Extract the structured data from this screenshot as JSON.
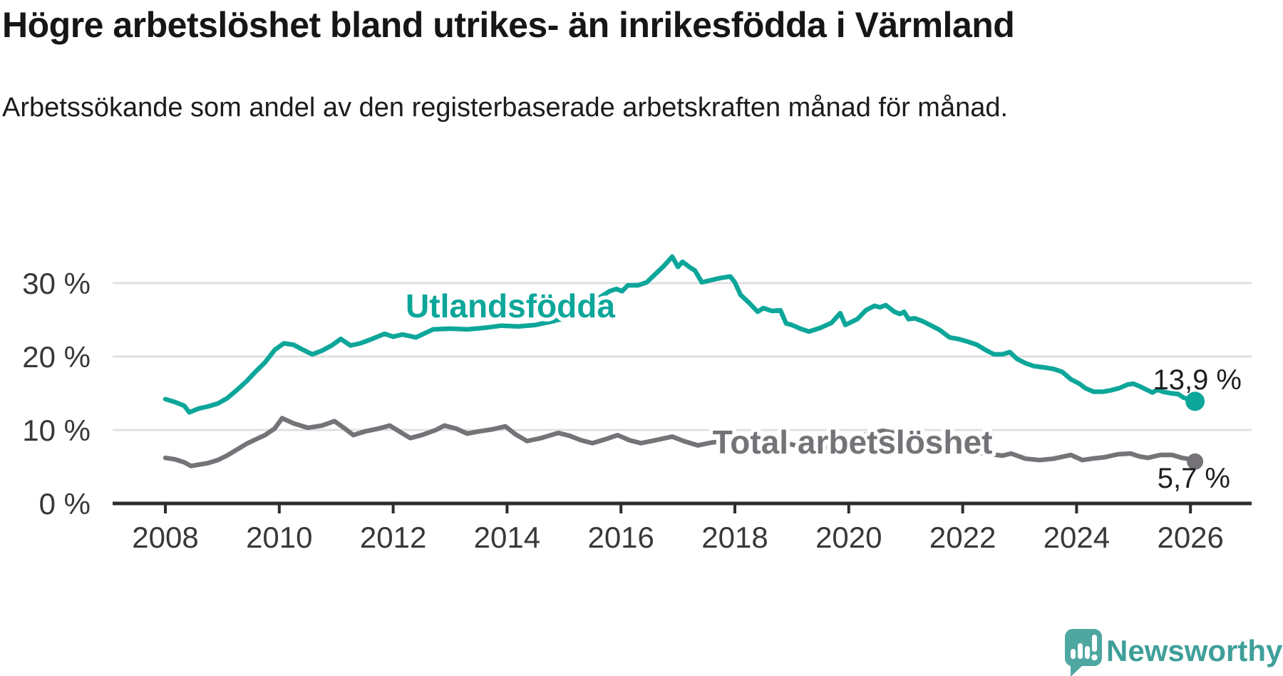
{
  "chart_data": {
    "type": "line",
    "title": "Högre arbetslöshet bland utrikes- än inrikesfödda i Värmland",
    "subtitle": "Arbetssökande som andel av den registerbaserade arbetskraften månad för månad.",
    "unit": "percent",
    "grid": "horizontal",
    "legend_position": "inline-labels",
    "x_axis": {
      "range": [
        2007.1,
        2027.1
      ],
      "ticks": [
        {
          "value": 2008,
          "label": "2008"
        },
        {
          "value": 2010,
          "label": "2010"
        },
        {
          "value": 2012,
          "label": "2012"
        },
        {
          "value": 2014,
          "label": "2014"
        },
        {
          "value": 2016,
          "label": "2016"
        },
        {
          "value": 2018,
          "label": "2018"
        },
        {
          "value": 2020,
          "label": "2020"
        },
        {
          "value": 2022,
          "label": "2022"
        },
        {
          "value": 2024,
          "label": "2024"
        },
        {
          "value": 2026,
          "label": "2026"
        }
      ]
    },
    "y_axis": {
      "range": [
        0,
        34.6
      ],
      "ticks": [
        {
          "value": 0,
          "label": "0 %"
        },
        {
          "value": 10,
          "label": "10 %"
        },
        {
          "value": 20,
          "label": "20 %"
        },
        {
          "value": 30,
          "label": "30 %"
        }
      ]
    },
    "series": [
      {
        "name": "Utlandsfödda",
        "color": "#0da69a",
        "final_value": 13.9,
        "end_label": "13,9 %",
        "points": [
          [
            2008.0,
            14.2
          ],
          [
            2008.17,
            13.8
          ],
          [
            2008.33,
            13.3
          ],
          [
            2008.42,
            12.4
          ],
          [
            2008.58,
            12.9
          ],
          [
            2008.75,
            13.2
          ],
          [
            2008.92,
            13.6
          ],
          [
            2009.08,
            14.3
          ],
          [
            2009.25,
            15.4
          ],
          [
            2009.42,
            16.6
          ],
          [
            2009.58,
            17.9
          ],
          [
            2009.75,
            19.2
          ],
          [
            2009.92,
            20.9
          ],
          [
            2010.08,
            21.8
          ],
          [
            2010.25,
            21.6
          ],
          [
            2010.42,
            20.9
          ],
          [
            2010.58,
            20.3
          ],
          [
            2010.75,
            20.8
          ],
          [
            2010.92,
            21.5
          ],
          [
            2011.08,
            22.4
          ],
          [
            2011.25,
            21.5
          ],
          [
            2011.42,
            21.8
          ],
          [
            2011.6,
            22.3
          ],
          [
            2011.85,
            23.1
          ],
          [
            2012.0,
            22.7
          ],
          [
            2012.16,
            23.0
          ],
          [
            2012.4,
            22.6
          ],
          [
            2012.7,
            23.7
          ],
          [
            2013.0,
            23.8
          ],
          [
            2013.3,
            23.7
          ],
          [
            2013.6,
            23.9
          ],
          [
            2013.9,
            24.2
          ],
          [
            2014.2,
            24.1
          ],
          [
            2014.5,
            24.3
          ],
          [
            2014.8,
            24.8
          ],
          [
            2015.1,
            25.4
          ],
          [
            2015.4,
            26.6
          ],
          [
            2015.6,
            27.9
          ],
          [
            2015.8,
            28.9
          ],
          [
            2015.92,
            29.2
          ],
          [
            2016.02,
            28.9
          ],
          [
            2016.12,
            29.7
          ],
          [
            2016.3,
            29.7
          ],
          [
            2016.45,
            30.1
          ],
          [
            2016.6,
            31.2
          ],
          [
            2016.75,
            32.3
          ],
          [
            2016.9,
            33.6
          ],
          [
            2017.0,
            32.2
          ],
          [
            2017.08,
            32.9
          ],
          [
            2017.2,
            32.2
          ],
          [
            2017.3,
            31.7
          ],
          [
            2017.42,
            30.1
          ],
          [
            2017.58,
            30.4
          ],
          [
            2017.75,
            30.7
          ],
          [
            2017.92,
            30.9
          ],
          [
            2018.0,
            30.1
          ],
          [
            2018.1,
            28.4
          ],
          [
            2018.25,
            27.3
          ],
          [
            2018.4,
            26.1
          ],
          [
            2018.5,
            26.6
          ],
          [
            2018.65,
            26.2
          ],
          [
            2018.8,
            26.3
          ],
          [
            2018.9,
            24.5
          ],
          [
            2019.0,
            24.3
          ],
          [
            2019.15,
            23.8
          ],
          [
            2019.3,
            23.4
          ],
          [
            2019.5,
            23.9
          ],
          [
            2019.7,
            24.6
          ],
          [
            2019.85,
            25.9
          ],
          [
            2019.94,
            24.3
          ],
          [
            2020.15,
            25.1
          ],
          [
            2020.3,
            26.3
          ],
          [
            2020.45,
            26.9
          ],
          [
            2020.55,
            26.7
          ],
          [
            2020.65,
            27.0
          ],
          [
            2020.8,
            26.1
          ],
          [
            2020.9,
            25.8
          ],
          [
            2020.97,
            26.1
          ],
          [
            2021.05,
            25.1
          ],
          [
            2021.16,
            25.2
          ],
          [
            2021.3,
            24.8
          ],
          [
            2021.45,
            24.2
          ],
          [
            2021.6,
            23.6
          ],
          [
            2021.77,
            22.6
          ],
          [
            2021.92,
            22.4
          ],
          [
            2022.1,
            22.0
          ],
          [
            2022.25,
            21.6
          ],
          [
            2022.4,
            20.9
          ],
          [
            2022.55,
            20.3
          ],
          [
            2022.7,
            20.3
          ],
          [
            2022.83,
            20.6
          ],
          [
            2022.95,
            19.7
          ],
          [
            2023.1,
            19.1
          ],
          [
            2023.25,
            18.7
          ],
          [
            2023.45,
            18.5
          ],
          [
            2023.6,
            18.3
          ],
          [
            2023.75,
            17.9
          ],
          [
            2023.9,
            16.9
          ],
          [
            2024.05,
            16.3
          ],
          [
            2024.15,
            15.7
          ],
          [
            2024.3,
            15.2
          ],
          [
            2024.45,
            15.2
          ],
          [
            2024.6,
            15.4
          ],
          [
            2024.75,
            15.7
          ],
          [
            2024.9,
            16.2
          ],
          [
            2025.0,
            16.3
          ],
          [
            2025.12,
            15.9
          ],
          [
            2025.25,
            15.4
          ],
          [
            2025.33,
            15.1
          ],
          [
            2025.42,
            15.5
          ],
          [
            2025.52,
            15.2
          ],
          [
            2025.65,
            15.0
          ],
          [
            2025.78,
            14.9
          ],
          [
            2025.88,
            14.4
          ],
          [
            2026.0,
            14.1
          ],
          [
            2026.08,
            13.9
          ]
        ]
      },
      {
        "name": "Total arbetslöshet",
        "color": "#767378",
        "final_value": 5.7,
        "end_label": "5,7 %",
        "points": [
          [
            2008.0,
            6.2
          ],
          [
            2008.17,
            6.0
          ],
          [
            2008.33,
            5.6
          ],
          [
            2008.45,
            5.1
          ],
          [
            2008.6,
            5.3
          ],
          [
            2008.75,
            5.5
          ],
          [
            2008.92,
            5.9
          ],
          [
            2009.08,
            6.5
          ],
          [
            2009.25,
            7.3
          ],
          [
            2009.42,
            8.1
          ],
          [
            2009.58,
            8.7
          ],
          [
            2009.75,
            9.3
          ],
          [
            2009.92,
            10.2
          ],
          [
            2010.05,
            11.6
          ],
          [
            2010.25,
            10.9
          ],
          [
            2010.5,
            10.3
          ],
          [
            2010.75,
            10.6
          ],
          [
            2010.97,
            11.2
          ],
          [
            2011.15,
            10.2
          ],
          [
            2011.3,
            9.3
          ],
          [
            2011.5,
            9.8
          ],
          [
            2011.75,
            10.2
          ],
          [
            2011.94,
            10.6
          ],
          [
            2012.15,
            9.6
          ],
          [
            2012.3,
            8.9
          ],
          [
            2012.5,
            9.3
          ],
          [
            2012.75,
            10.0
          ],
          [
            2012.9,
            10.6
          ],
          [
            2013.1,
            10.2
          ],
          [
            2013.3,
            9.5
          ],
          [
            2013.5,
            9.8
          ],
          [
            2013.75,
            10.1
          ],
          [
            2013.97,
            10.5
          ],
          [
            2014.15,
            9.4
          ],
          [
            2014.35,
            8.5
          ],
          [
            2014.6,
            8.9
          ],
          [
            2014.9,
            9.6
          ],
          [
            2015.1,
            9.2
          ],
          [
            2015.3,
            8.6
          ],
          [
            2015.5,
            8.2
          ],
          [
            2015.75,
            8.8
          ],
          [
            2015.94,
            9.3
          ],
          [
            2016.15,
            8.6
          ],
          [
            2016.35,
            8.2
          ],
          [
            2016.6,
            8.6
          ],
          [
            2016.9,
            9.1
          ],
          [
            2017.1,
            8.5
          ],
          [
            2017.35,
            7.9
          ],
          [
            2017.6,
            8.3
          ],
          [
            2018.0,
            8.6
          ],
          [
            2018.4,
            7.6
          ],
          [
            2018.9,
            8.2
          ],
          [
            2019.4,
            7.3
          ],
          [
            2019.9,
            8.0
          ],
          [
            2020.3,
            9.4
          ],
          [
            2020.6,
            9.9
          ],
          [
            2020.9,
            9.4
          ],
          [
            2021.3,
            8.5
          ],
          [
            2021.6,
            7.9
          ],
          [
            2021.95,
            7.5
          ],
          [
            2022.2,
            7.0
          ],
          [
            2022.5,
            6.7
          ],
          [
            2022.7,
            6.5
          ],
          [
            2022.85,
            6.8
          ],
          [
            2023.1,
            6.1
          ],
          [
            2023.35,
            5.9
          ],
          [
            2023.6,
            6.1
          ],
          [
            2023.9,
            6.6
          ],
          [
            2024.1,
            5.9
          ],
          [
            2024.27,
            6.1
          ],
          [
            2024.5,
            6.3
          ],
          [
            2024.73,
            6.7
          ],
          [
            2024.95,
            6.8
          ],
          [
            2025.1,
            6.4
          ],
          [
            2025.25,
            6.2
          ],
          [
            2025.47,
            6.6
          ],
          [
            2025.68,
            6.6
          ],
          [
            2025.85,
            6.2
          ],
          [
            2026.0,
            6.0
          ],
          [
            2026.08,
            5.7
          ]
        ]
      }
    ]
  },
  "branding": {
    "logo_text": "Newsworthy",
    "brand_color": "#3f9f99",
    "logo_mark": "speech-bubble-bar-chart-exclamation"
  }
}
